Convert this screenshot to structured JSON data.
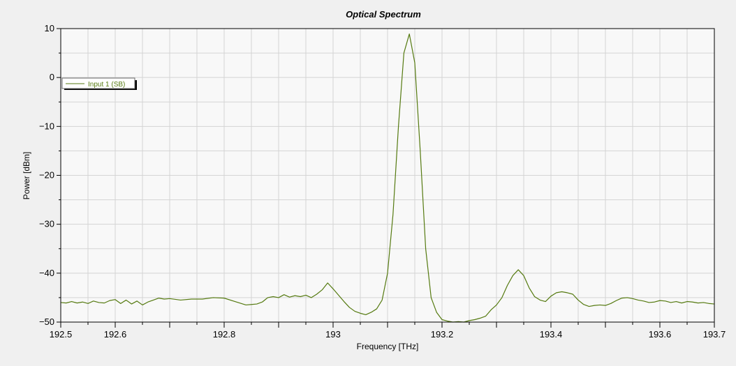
{
  "colors": {
    "background": "#f0f0f0",
    "plot_background": "#f8f8f8",
    "grid": "#d4d4d4",
    "series": "#557a10"
  },
  "chart_data": {
    "type": "line",
    "title": "Optical Spectrum",
    "xlabel": "Frequency [THz]",
    "ylabel": "Power [dBm]",
    "xlim": [
      192.5,
      193.7
    ],
    "ylim": [
      -50,
      10
    ],
    "x_ticks": [
      192.5,
      192.6,
      192.8,
      193,
      193.2,
      193.4,
      193.6,
      193.7
    ],
    "x_tick_labels": [
      "192.5",
      "192.6",
      "192.8",
      "193",
      "193.2",
      "193.4",
      "193.6",
      "193.7"
    ],
    "y_ticks": [
      10,
      0,
      -10,
      -20,
      -30,
      -40,
      -50
    ],
    "y_tick_labels": [
      "10",
      "0",
      "−10",
      "−20",
      "−30",
      "−40",
      "−50"
    ],
    "grid": true,
    "legend_position": "upper-left",
    "series": [
      {
        "name": "Input 1  (SB)",
        "color": "#557a10",
        "x": [
          192.5,
          192.51,
          192.52,
          192.53,
          192.54,
          192.55,
          192.56,
          192.57,
          192.58,
          192.59,
          192.6,
          192.61,
          192.62,
          192.63,
          192.64,
          192.65,
          192.66,
          192.67,
          192.68,
          192.69,
          192.7,
          192.72,
          192.74,
          192.76,
          192.78,
          192.8,
          192.82,
          192.84,
          192.85,
          192.86,
          192.87,
          192.88,
          192.89,
          192.9,
          192.91,
          192.92,
          192.93,
          192.94,
          192.95,
          192.96,
          192.97,
          192.98,
          192.99,
          193.0,
          193.01,
          193.02,
          193.03,
          193.04,
          193.05,
          193.06,
          193.07,
          193.08,
          193.09,
          193.1,
          193.11,
          193.12,
          193.13,
          193.14,
          193.15,
          193.16,
          193.17,
          193.18,
          193.19,
          193.2,
          193.21,
          193.22,
          193.23,
          193.24,
          193.25,
          193.26,
          193.27,
          193.28,
          193.29,
          193.3,
          193.31,
          193.32,
          193.33,
          193.34,
          193.35,
          193.36,
          193.37,
          193.38,
          193.39,
          193.4,
          193.41,
          193.42,
          193.43,
          193.44,
          193.45,
          193.46,
          193.47,
          193.48,
          193.49,
          193.5,
          193.51,
          193.52,
          193.53,
          193.54,
          193.55,
          193.56,
          193.57,
          193.58,
          193.59,
          193.6,
          193.61,
          193.62,
          193.63,
          193.64,
          193.65,
          193.66,
          193.67,
          193.68,
          193.69,
          193.7
        ],
        "y": [
          -46.0,
          -46.1,
          -45.8,
          -46.1,
          -45.9,
          -46.2,
          -45.7,
          -46.0,
          -46.1,
          -45.6,
          -45.4,
          -46.2,
          -45.5,
          -46.3,
          -45.7,
          -46.5,
          -45.9,
          -45.5,
          -45.1,
          -45.3,
          -45.2,
          -45.5,
          -45.3,
          -45.3,
          -45.0,
          -45.1,
          -45.8,
          -46.5,
          -46.4,
          -46.3,
          -45.9,
          -45.0,
          -44.8,
          -45.0,
          -44.4,
          -44.9,
          -44.6,
          -44.8,
          -44.5,
          -45.0,
          -44.3,
          -43.4,
          -42.0,
          -43.2,
          -44.5,
          -45.8,
          -47.0,
          -47.8,
          -48.2,
          -48.5,
          -48.0,
          -47.3,
          -45.5,
          -40.0,
          -28.0,
          -10.0,
          5.0,
          8.9,
          3.0,
          -15.0,
          -35.0,
          -45.0,
          -48.0,
          -49.5,
          -49.8,
          -50.0,
          -49.9,
          -50.0,
          -49.7,
          -49.5,
          -49.2,
          -48.8,
          -47.5,
          -46.5,
          -45.0,
          -42.5,
          -40.5,
          -39.3,
          -40.5,
          -43.0,
          -44.8,
          -45.5,
          -45.8,
          -44.7,
          -44.0,
          -43.8,
          -44.0,
          -44.3,
          -45.5,
          -46.4,
          -46.8,
          -46.6,
          -46.5,
          -46.6,
          -46.2,
          -45.6,
          -45.1,
          -45.0,
          -45.2,
          -45.5,
          -45.7,
          -46.0,
          -45.9,
          -45.6,
          -45.7,
          -46.0,
          -45.8,
          -46.1,
          -45.8,
          -45.9,
          -46.1,
          -46.0,
          -46.2,
          -46.3
        ]
      }
    ]
  }
}
